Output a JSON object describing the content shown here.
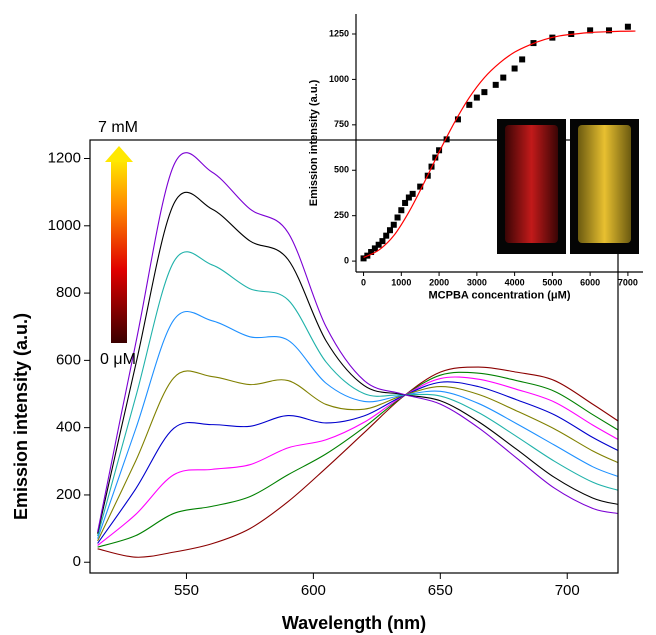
{
  "chart_data": [
    {
      "type": "line",
      "x_label": "Wavelength (nm)",
      "y_label": "Emission intensity (a.u.)",
      "annotations": [
        "7 mM",
        "0 μM"
      ],
      "x": [
        515,
        530,
        545,
        560,
        575,
        590,
        605,
        620,
        635,
        650,
        665,
        680,
        695,
        710,
        720
      ],
      "xlim": [
        512,
        720
      ],
      "xticks": [
        550,
        600,
        650,
        700
      ],
      "ylim": [
        -32,
        1255
      ],
      "yticks": [
        0,
        200,
        400,
        600,
        800,
        1000,
        1200
      ],
      "series": [
        {
          "color": "#8b0000",
          "values": [
            40,
            15,
            30,
            55,
            100,
            180,
            280,
            385,
            490,
            565,
            580,
            565,
            540,
            470,
            420
          ]
        },
        {
          "color": "#008000",
          "values": [
            45,
            79,
            145,
            166,
            195,
            260,
            322,
            401,
            491,
            556,
            562,
            540,
            508,
            439,
            393
          ]
        },
        {
          "color": "#ff00ff",
          "values": [
            50,
            142,
            260,
            276,
            290,
            340,
            364,
            416,
            492,
            546,
            544,
            514,
            476,
            408,
            365
          ]
        },
        {
          "color": "#0000cd",
          "values": [
            56,
            218,
            398,
            409,
            404,
            436,
            414,
            435,
            493,
            535,
            522,
            483,
            438,
            371,
            332
          ]
        },
        {
          "color": "#808000",
          "values": [
            63,
            301,
            548,
            552,
            528,
            540,
            469,
            455,
            495,
            522,
            499,
            450,
            396,
            331,
            296
          ]
        },
        {
          "color": "#1e90ff",
          "values": [
            70,
            396,
            720,
            718,
            670,
            660,
            532,
            478,
            496,
            508,
            472,
            412,
            348,
            284,
            255
          ]
        },
        {
          "color": "#20b2aa",
          "values": [
            78,
            491,
            893,
            884,
            813,
            780,
            595,
            501,
            498,
            494,
            445,
            374,
            300,
            238,
            214
          ]
        },
        {
          "color": "#000000",
          "values": [
            85,
            587,
            1065,
            1050,
            955,
            900,
            658,
            525,
            499,
            480,
            418,
            336,
            252,
            191,
            172
          ]
        },
        {
          "color": "#7b00d4",
          "values": [
            90,
            650,
            1180,
            1160,
            1050,
            980,
            700,
            540,
            500,
            470,
            400,
            310,
            220,
            160,
            145
          ]
        }
      ]
    },
    {
      "type": "scatter",
      "x_label": "MCPBA concentration (μM)",
      "y_label": "Emission intensity (a.u.)",
      "xlim": [
        -200,
        7400
      ],
      "xticks": [
        0,
        1000,
        2000,
        3000,
        4000,
        5000,
        6000,
        7000
      ],
      "ylim": [
        -60,
        1360
      ],
      "yticks": [
        0,
        250,
        500,
        750,
        1000,
        1250
      ],
      "series": [
        {
          "mode": "markers",
          "color": "#000000",
          "x": [
            0,
            100,
            200,
            300,
            400,
            500,
            600,
            700,
            800,
            900,
            1000,
            1100,
            1200,
            1300,
            1500,
            1700,
            1800,
            1900,
            2000,
            2200,
            2500,
            2800,
            3000,
            3200,
            3500,
            3700,
            4000,
            4200,
            4500,
            5000,
            5500,
            6000,
            6500,
            7000
          ],
          "values": [
            15,
            30,
            50,
            70,
            90,
            110,
            140,
            170,
            200,
            240,
            280,
            320,
            350,
            370,
            410,
            470,
            520,
            570,
            610,
            670,
            780,
            860,
            900,
            930,
            970,
            1010,
            1060,
            1110,
            1200,
            1230,
            1250,
            1270,
            1270,
            1290
          ]
        },
        {
          "mode": "line",
          "color": "#ff0000",
          "x": [
            0,
            400,
            800,
            1200,
            1600,
            2000,
            2400,
            2800,
            3200,
            3600,
            4000,
            4400,
            4800,
            5200,
            5600,
            6000,
            6400,
            6800,
            7200
          ],
          "values": [
            20,
            60,
            140,
            270,
            430,
            600,
            760,
            900,
            1010,
            1090,
            1150,
            1190,
            1220,
            1240,
            1250,
            1258,
            1262,
            1265,
            1266
          ]
        }
      ]
    }
  ]
}
